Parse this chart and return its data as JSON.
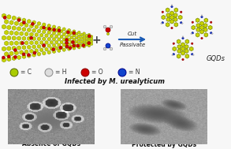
{
  "background_color": "#f7f7f7",
  "graphene_color": "#c8d400",
  "graphene_edge_color": "#7a8a00",
  "oxygen_color": "#cc0000",
  "nitrogen_color": "#1144cc",
  "hydrogen_color": "#dddddd",
  "hydrogen_edge": "#888888",
  "arrow_color": "#1a5bb5",
  "arrow_texts": [
    "Cut",
    "Passivate"
  ],
  "gqds_label": "GQDs",
  "legend_items": [
    "C",
    "H",
    "O",
    "N"
  ],
  "legend_colors": [
    "#aacc00",
    "#dddddd",
    "#cc0000",
    "#1144cc"
  ],
  "legend_edges": [
    "#556600",
    "#888888",
    "#880000",
    "#000088"
  ],
  "bottom_title": "Infected by M. urealyticum",
  "label_left": "Absence of GQDs",
  "label_right": "Protected by GQDs"
}
